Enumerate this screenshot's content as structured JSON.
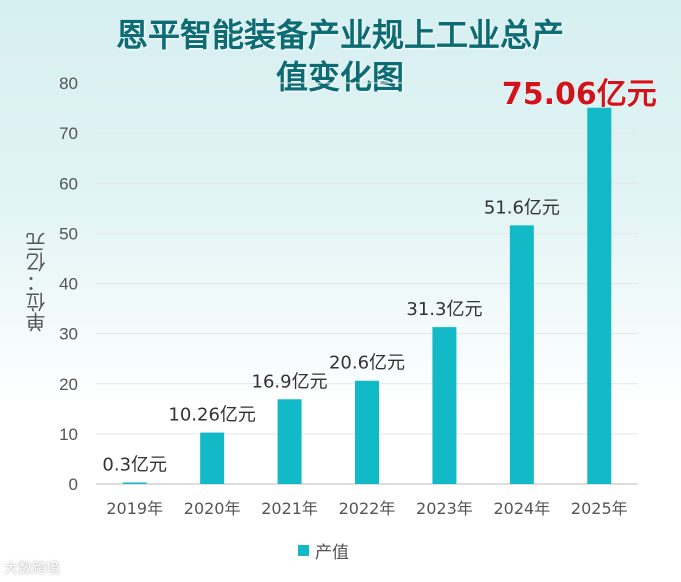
{
  "title": "恩平智能装备产业规上工业总产值变化图",
  "title_lines": [
    "恩平智能装备产业规上工业总产",
    "值变化图"
  ],
  "ylabel": "单位：亿元",
  "legend": "产值",
  "watermark": "大数跨境",
  "colors": {
    "bar": "#12b9c6",
    "highlight_label": "#d0141c",
    "title": "#0d6b73"
  },
  "chart_data": {
    "type": "bar",
    "categories": [
      "2019年",
      "2020年",
      "2021年",
      "2022年",
      "2023年",
      "2024年",
      "2025年"
    ],
    "series": [
      {
        "name": "产值",
        "values": [
          0.3,
          10.26,
          16.9,
          20.6,
          31.3,
          51.6,
          75.06
        ]
      }
    ],
    "data_labels": [
      "0.3亿元",
      "10.26亿元",
      "16.9亿元",
      "20.6亿元",
      "31.3亿元",
      "51.6亿元",
      "75.06亿元"
    ],
    "highlight_index": 6,
    "ylabel": "单位：亿元",
    "ylim": [
      0,
      80
    ],
    "yticks": [
      0,
      10,
      20,
      30,
      40,
      50,
      60,
      70,
      80
    ],
    "grid": true,
    "legend_position": "bottom"
  }
}
